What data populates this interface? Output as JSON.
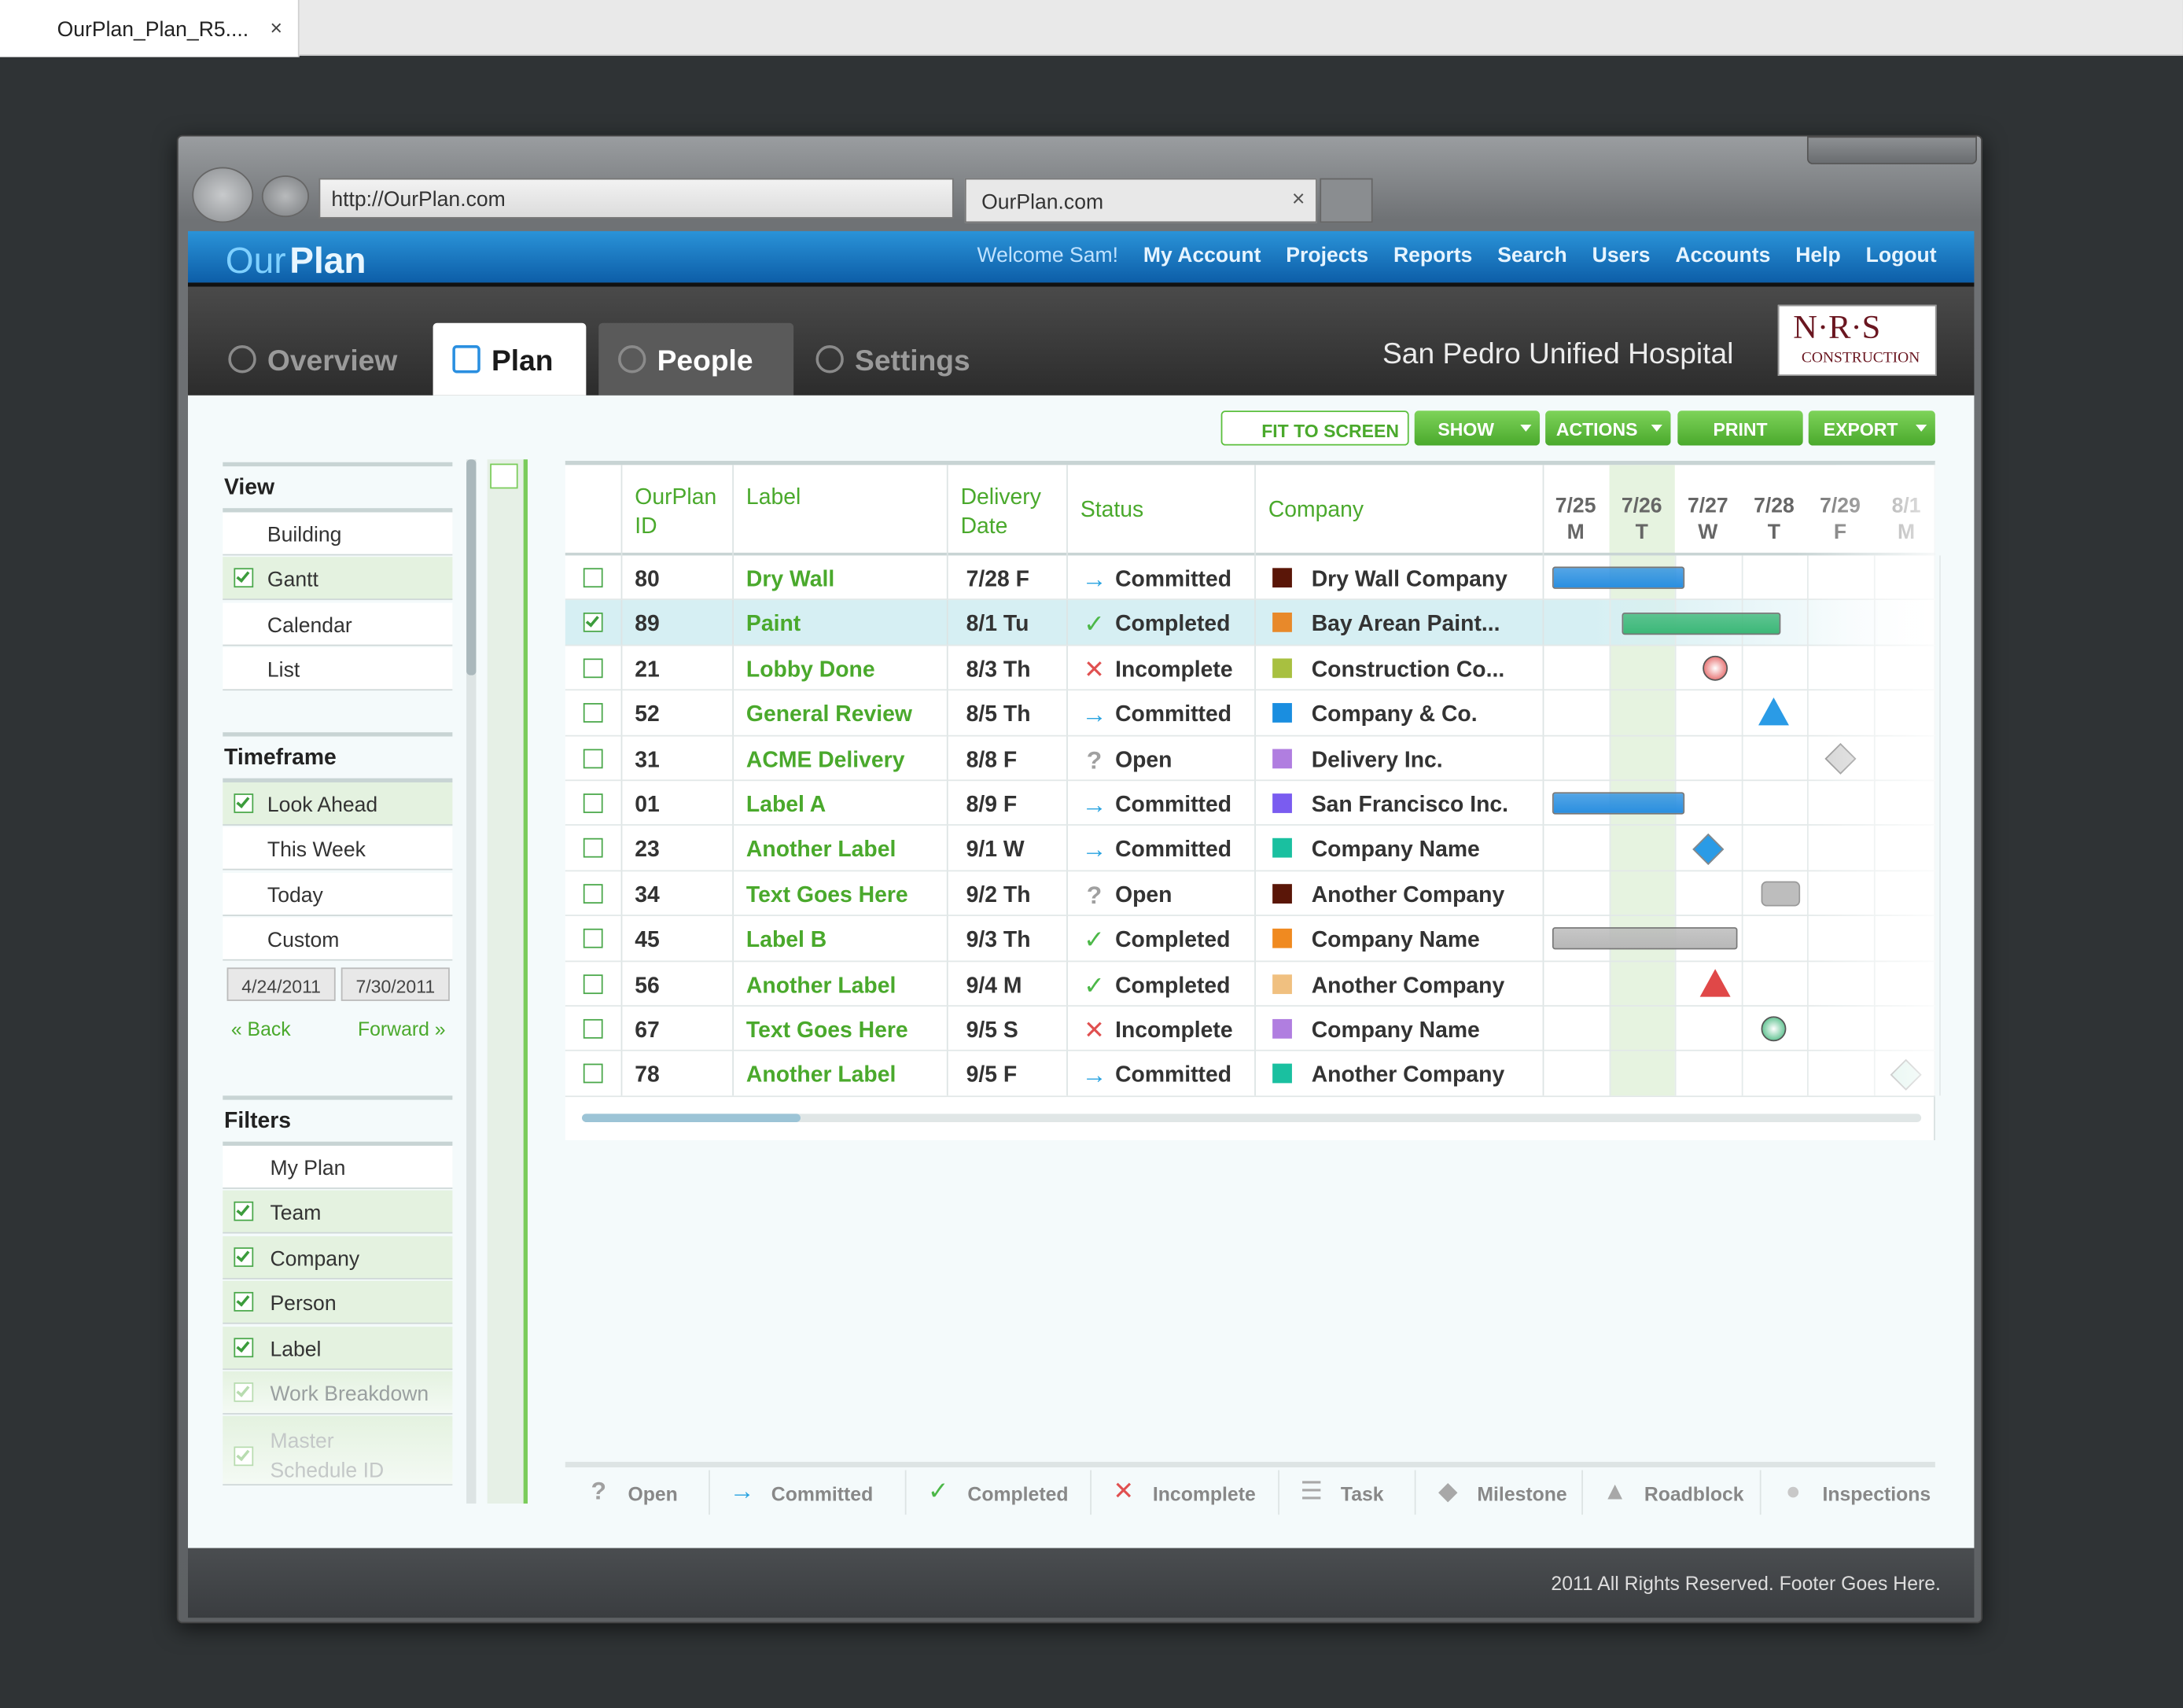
{
  "browser_tab": {
    "title": "OurPlan_Plan_R5....",
    "close": "×"
  },
  "browser": {
    "url": "http://OurPlan.com",
    "tab": "OurPlan.com",
    "tab_close": "×"
  },
  "header": {
    "logo_a": "Our",
    "logo_b": "Plan",
    "welcome": "Welcome Sam!",
    "nav": [
      "My Account",
      "Projects",
      "Reports",
      "Search",
      "Users",
      "Accounts",
      "Help",
      "Logout"
    ]
  },
  "tabs": [
    {
      "label": "Overview",
      "active": false
    },
    {
      "label": "Plan",
      "active": true
    },
    {
      "label": "People",
      "active": false
    },
    {
      "label": "Settings",
      "active": false
    }
  ],
  "project": "San Pedro Unified Hospital",
  "company_logo": {
    "name": "N·R·S",
    "sub": "CONSTRUCTION"
  },
  "toolbar": [
    "FIT TO SCREEN",
    "SHOW",
    "ACTIONS",
    "PRINT",
    "EXPORT"
  ],
  "sidebar": {
    "sections": [
      {
        "title": "View",
        "items": [
          {
            "label": "Building",
            "checked": false
          },
          {
            "label": "Gantt",
            "checked": true
          },
          {
            "label": "Calendar",
            "checked": false
          },
          {
            "label": "List",
            "checked": false
          }
        ]
      },
      {
        "title": "Timeframe",
        "items": [
          {
            "label": "Look Ahead",
            "checked": true
          },
          {
            "label": "This Week",
            "checked": false
          },
          {
            "label": "Today",
            "checked": false
          },
          {
            "label": "Custom",
            "checked": false
          }
        ]
      },
      {
        "title": "Filters",
        "items": [
          {
            "label": "My Plan",
            "checked": false
          },
          {
            "label": "Team",
            "checked": true
          },
          {
            "label": "Company",
            "checked": true
          },
          {
            "label": "Person",
            "checked": true
          },
          {
            "label": "Label",
            "checked": true
          },
          {
            "label": "Work Breakdown",
            "checked": true,
            "faded": true
          },
          {
            "label": "Master Schedule ID",
            "checked": true,
            "faded": true
          }
        ]
      }
    ],
    "dates": [
      "4/24/2011",
      "7/30/2011"
    ],
    "back": "« Back",
    "forward": "Forward »"
  },
  "table": {
    "columns": [
      "OurPlan ID",
      "Label",
      "Delivery Date",
      "Status",
      "Company"
    ],
    "days": [
      {
        "date": "7/25",
        "day": "M"
      },
      {
        "date": "7/26",
        "day": "T"
      },
      {
        "date": "7/27",
        "day": "W"
      },
      {
        "date": "7/28",
        "day": "T"
      },
      {
        "date": "7/29",
        "day": "F"
      },
      {
        "date": "8/1",
        "day": "M"
      }
    ],
    "rows": [
      {
        "checked": false,
        "id": "80",
        "label": "Dry Wall",
        "date": "7/28 F",
        "status": "Committed",
        "company": "Dry Wall Company",
        "color": "#5a1608",
        "gantt": {
          "kind": "task",
          "color": "#2a8fe0",
          "start": 0.15,
          "end": 2.15
        }
      },
      {
        "checked": true,
        "id": "89",
        "label": "Paint",
        "date": "8/1 Tu",
        "status": "Completed",
        "company": "Bay Arean Paint...",
        "color": "#e8892a",
        "gantt": {
          "kind": "task",
          "color": "#3cb878",
          "start": 1.2,
          "end": 3.6
        }
      },
      {
        "checked": false,
        "id": "21",
        "label": "Lobby Done",
        "date": "8/3 Th",
        "status": "Incomplete",
        "company": "Construction Co...",
        "color": "#a8c040",
        "gantt": {
          "kind": "inspection",
          "color": "#e04848",
          "start": 2.6
        }
      },
      {
        "checked": false,
        "id": "52",
        "label": "General Review",
        "date": "8/5 Th",
        "status": "Committed",
        "company": "Company & Co.",
        "color": "#1a8ee0",
        "gantt": {
          "kind": "roadblock",
          "color": "#2a9be6",
          "start": 3.5
        }
      },
      {
        "checked": false,
        "id": "31",
        "label": "ACME Delivery",
        "date": "8/8 F",
        "status": "Open",
        "company": "Delivery Inc.",
        "color": "#b07ee0",
        "gantt": {
          "kind": "milestone",
          "color": "#d0d0d0",
          "start": 4.5
        }
      },
      {
        "checked": false,
        "id": "01",
        "label": "Label A",
        "date": "8/9 F",
        "status": "Committed",
        "company": "San Francisco Inc.",
        "color": "#7a5cf0",
        "gantt": {
          "kind": "task",
          "color": "#2a8fe0",
          "start": 0.15,
          "end": 2.15
        }
      },
      {
        "checked": false,
        "id": "23",
        "label": "Another Label",
        "date": "9/1 W",
        "status": "Committed",
        "company": "Company Name",
        "color": "#1ac0a0",
        "gantt": {
          "kind": "milestone",
          "color": "#2a9be6",
          "start": 2.5
        }
      },
      {
        "checked": false,
        "id": "34",
        "label": "Text Goes Here",
        "date": "9/2 Th",
        "status": "Open",
        "company": "Another Company",
        "color": "#5a1608",
        "gantt": {
          "kind": "delivery",
          "color": "#bdbdbd",
          "start": 3.6
        }
      },
      {
        "checked": false,
        "id": "45",
        "label": "Label B",
        "date": "9/3 Th",
        "status": "Completed",
        "company": "Company Name",
        "color": "#f08a20",
        "gantt": {
          "kind": "task",
          "color": "#b8b8b8",
          "start": 0.15,
          "end": 2.95
        }
      },
      {
        "checked": false,
        "id": "56",
        "label": "Another Label",
        "date": "9/4 M",
        "status": "Completed",
        "company": "Another Company",
        "color": "#f0c080",
        "gantt": {
          "kind": "roadblock",
          "color": "#e04848",
          "start": 2.6
        }
      },
      {
        "checked": false,
        "id": "67",
        "label": "Text Goes Here",
        "date": "9/5 S",
        "status": "Incomplete",
        "company": "Company Name",
        "color": "#b07ee0",
        "gantt": {
          "kind": "inspection",
          "color": "#30b070",
          "start": 3.5
        }
      },
      {
        "checked": false,
        "id": "78",
        "label": "Another Label",
        "date": "9/5 F",
        "status": "Committed",
        "company": "Another Company",
        "color": "#1ac0a0",
        "gantt": {
          "kind": "milestone",
          "color": "#cfeee4",
          "start": 5.5
        }
      }
    ]
  },
  "legend": [
    {
      "label": "Open",
      "icon": "?",
      "color": "#a0a0a0"
    },
    {
      "label": "Committed",
      "icon": "→",
      "color": "#29a3e0"
    },
    {
      "label": "Completed",
      "icon": "✓",
      "color": "#4cb848"
    },
    {
      "label": "Incomplete",
      "icon": "✕",
      "color": "#e05050"
    },
    {
      "label": "Task",
      "icon": "☰",
      "color": "#a8a8a8"
    },
    {
      "label": "Milestone",
      "icon": "◆",
      "color": "#a8a8a8"
    },
    {
      "label": "Roadblock",
      "icon": "▲",
      "color": "#a8a8a8"
    },
    {
      "label": "Inspections",
      "icon": "●",
      "color": "#c8c8c8"
    }
  ],
  "footer": "2011 All Rights Reserved. Footer Goes Here."
}
